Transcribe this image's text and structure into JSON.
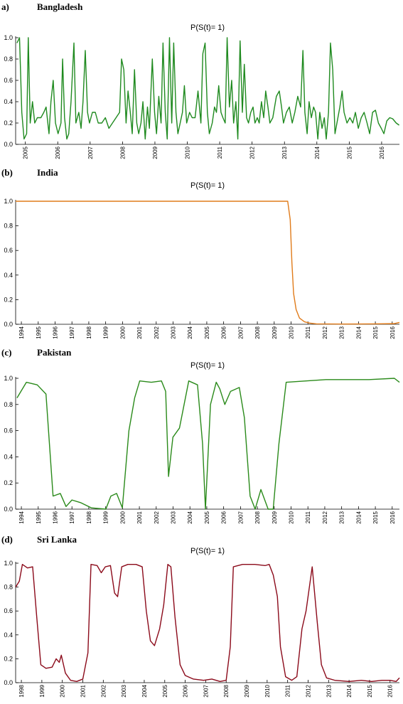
{
  "chart_data": [
    {
      "type": "line",
      "panel": "a)",
      "title": "Bangladesh",
      "subtitle": "P(S(t)= 1)",
      "color": "#1f8a1f",
      "xlim": [
        2004.7,
        2016.55
      ],
      "xticks": [
        2005,
        2006,
        2007,
        2008,
        2009,
        2010,
        2011,
        2012,
        2013,
        2014,
        2015,
        2016
      ],
      "ylim": [
        0,
        1
      ],
      "yticks": [
        {
          "value": 0,
          "label": "0.0"
        },
        0.2,
        0.4,
        0.6,
        0.8,
        {
          "value": 1,
          "label": "1.0"
        }
      ],
      "x": [
        2004.74,
        2004.82,
        2004.89,
        2004.96,
        2005.04,
        2005.09,
        2005.15,
        2005.22,
        2005.29,
        2005.37,
        2005.48,
        2005.57,
        2005.64,
        2005.73,
        2005.79,
        2005.86,
        2005.93,
        2006.01,
        2006.1,
        2006.15,
        2006.21,
        2006.28,
        2006.34,
        2006.41,
        2006.5,
        2006.56,
        2006.65,
        2006.72,
        2006.78,
        2006.85,
        2006.92,
        2006.98,
        2007.07,
        2007.16,
        2007.25,
        2007.36,
        2007.47,
        2007.58,
        2007.69,
        2007.8,
        2007.91,
        2007.97,
        2008.04,
        2008.11,
        2008.17,
        2008.24,
        2008.3,
        2008.37,
        2008.44,
        2008.5,
        2008.57,
        2008.63,
        2008.7,
        2008.77,
        2008.83,
        2008.92,
        2008.99,
        2009.05,
        2009.12,
        2009.19,
        2009.25,
        2009.32,
        2009.38,
        2009.45,
        2009.52,
        2009.58,
        2009.65,
        2009.71,
        2009.78,
        2009.85,
        2009.91,
        2009.98,
        2010.07,
        2010.15,
        2010.24,
        2010.33,
        2010.42,
        2010.48,
        2010.55,
        2010.62,
        2010.68,
        2010.77,
        2010.84,
        2010.9,
        2010.97,
        2011.04,
        2011.1,
        2011.17,
        2011.23,
        2011.3,
        2011.37,
        2011.43,
        2011.5,
        2011.56,
        2011.63,
        2011.7,
        2011.76,
        2011.83,
        2011.89,
        2011.96,
        2012.03,
        2012.09,
        2012.16,
        2012.22,
        2012.29,
        2012.36,
        2012.42,
        2012.49,
        2012.55,
        2012.64,
        2012.75,
        2012.84,
        2012.91,
        2012.97,
        2013.06,
        2013.15,
        2013.24,
        2013.32,
        2013.41,
        2013.5,
        2013.57,
        2013.63,
        2013.7,
        2013.76,
        2013.83,
        2013.9,
        2013.96,
        2014.03,
        2014.09,
        2014.16,
        2014.23,
        2014.29,
        2014.36,
        2014.42,
        2014.49,
        2014.56,
        2014.62,
        2014.71,
        2014.78,
        2014.84,
        2014.93,
        2015.02,
        2015.11,
        2015.19,
        2015.28,
        2015.37,
        2015.46,
        2015.55,
        2015.63,
        2015.72,
        2015.81,
        2015.9,
        2015.99,
        2016.07,
        2016.16,
        2016.25,
        2016.34,
        2016.45,
        2016.54
      ],
      "values": [
        0.95,
        1.0,
        0.3,
        0.05,
        0.1,
        1.0,
        0.2,
        0.4,
        0.2,
        0.25,
        0.25,
        0.3,
        0.35,
        0.1,
        0.4,
        0.6,
        0.2,
        0.1,
        0.2,
        0.8,
        0.25,
        0.05,
        0.1,
        0.4,
        0.95,
        0.2,
        0.3,
        0.15,
        0.4,
        0.88,
        0.3,
        0.2,
        0.3,
        0.3,
        0.2,
        0.2,
        0.25,
        0.15,
        0.2,
        0.25,
        0.3,
        0.8,
        0.7,
        0.2,
        0.5,
        0.3,
        0.1,
        0.7,
        0.2,
        0.1,
        0.2,
        0.4,
        0.05,
        0.35,
        0.15,
        0.8,
        0.3,
        0.1,
        0.45,
        0.2,
        0.95,
        0.3,
        0.05,
        1.0,
        0.2,
        0.95,
        0.3,
        0.1,
        0.2,
        0.3,
        0.55,
        0.2,
        0.3,
        0.25,
        0.25,
        0.5,
        0.2,
        0.85,
        0.95,
        0.3,
        0.1,
        0.2,
        0.35,
        0.3,
        0.55,
        0.3,
        0.25,
        0.2,
        1.0,
        0.35,
        0.6,
        0.2,
        0.4,
        0.05,
        0.97,
        0.3,
        0.75,
        0.25,
        0.2,
        0.3,
        0.35,
        0.2,
        0.25,
        0.2,
        0.4,
        0.25,
        0.5,
        0.35,
        0.2,
        0.25,
        0.45,
        0.5,
        0.35,
        0.2,
        0.3,
        0.35,
        0.2,
        0.3,
        0.45,
        0.35,
        0.88,
        0.3,
        0.1,
        0.4,
        0.25,
        0.35,
        0.3,
        0.05,
        0.3,
        0.15,
        0.25,
        0.05,
        0.3,
        0.95,
        0.7,
        0.1,
        0.2,
        0.35,
        0.5,
        0.3,
        0.2,
        0.25,
        0.2,
        0.3,
        0.15,
        0.25,
        0.3,
        0.2,
        0.1,
        0.3,
        0.32,
        0.2,
        0.15,
        0.1,
        0.22,
        0.25,
        0.24,
        0.2,
        0.18
      ]
    },
    {
      "type": "line",
      "panel": "(b)",
      "title": "India",
      "subtitle": "P(S(t)= 1)",
      "color": "#e07b1a",
      "xlim": [
        1993.66,
        2016.43
      ],
      "xticks": [
        1994,
        1995,
        1996,
        1997,
        1998,
        1999,
        2000,
        2001,
        2002,
        2003,
        2004,
        2005,
        2006,
        2007,
        2008,
        2009,
        2010,
        2011,
        2012,
        2013,
        2014,
        2015,
        2016
      ],
      "ylim": [
        0,
        1
      ],
      "yticks": [
        {
          "value": 0,
          "label": "0.0"
        },
        0.2,
        0.4,
        0.6,
        0.8,
        {
          "value": 1,
          "label": "1.0"
        }
      ],
      "x": [
        1993.66,
        2009.8,
        2009.95,
        2010.05,
        2010.15,
        2010.3,
        2010.5,
        2010.8,
        2011.1,
        2011.5,
        2013,
        2015,
        2016.1,
        2016.43
      ],
      "values": [
        1,
        1,
        0.85,
        0.5,
        0.25,
        0.12,
        0.05,
        0.02,
        0.01,
        0.003,
        0.002,
        0.003,
        0.005,
        0.015
      ]
    },
    {
      "type": "line",
      "panel": "(c)",
      "title": "Pakistan",
      "subtitle": "P(S(t)= 1)",
      "color": "#2a8a1a",
      "xlim": [
        1993.66,
        2016.43
      ],
      "xticks": [
        1994,
        1995,
        1996,
        1997,
        1998,
        1999,
        2000,
        2001,
        2002,
        2003,
        2004,
        2005,
        2006,
        2007,
        2008,
        2009,
        2010,
        2011,
        2012,
        2013,
        2014,
        2015,
        2016
      ],
      "ylim": [
        0,
        1
      ],
      "yticks": [
        {
          "value": 0,
          "label": "0.0"
        },
        0.2,
        0.4,
        0.6,
        0.8,
        {
          "value": 1,
          "label": "1.0"
        }
      ],
      "x": [
        1993.74,
        1994.3,
        1994.94,
        1995.46,
        1995.88,
        1996.31,
        1996.65,
        1997.0,
        1997.51,
        1998.15,
        1999.01,
        1999.31,
        1999.65,
        1999.99,
        2000.38,
        2000.72,
        2001.02,
        2001.71,
        2002.31,
        2002.56,
        2002.73,
        2002.99,
        2003.38,
        2003.93,
        2004.45,
        2004.75,
        2004.92,
        2005.22,
        2005.56,
        2005.77,
        2006.07,
        2006.41,
        2006.93,
        2007.23,
        2007.57,
        2007.87,
        2008.21,
        2008.64,
        2008.94,
        2009.28,
        2009.71,
        2012.07,
        2014.63,
        2016.13,
        2016.43
      ],
      "values": [
        0.85,
        0.97,
        0.95,
        0.88,
        0.1,
        0.12,
        0.02,
        0.07,
        0.05,
        0.01,
        0,
        0.1,
        0.12,
        0.01,
        0.6,
        0.85,
        0.98,
        0.97,
        0.98,
        0.9,
        0.25,
        0.55,
        0.62,
        0.98,
        0.95,
        0.5,
        0,
        0.8,
        0.97,
        0.92,
        0.8,
        0.9,
        0.93,
        0.7,
        0.1,
        0,
        0.15,
        0,
        0,
        0.5,
        0.97,
        0.99,
        0.99,
        1,
        0.97
      ]
    },
    {
      "type": "line",
      "panel": "(d)",
      "title": "Sri Lanka",
      "subtitle": "P(S(t)= 1)",
      "color": "#8b0a1a",
      "xlim": [
        1997.72,
        2016.46
      ],
      "xticks": [
        1998,
        1999,
        2000,
        2001,
        2002,
        2003,
        2004,
        2005,
        2006,
        2007,
        2008,
        2009,
        2010,
        2011,
        2012,
        2013,
        2014,
        2015,
        2016
      ],
      "ylim": [
        0,
        1
      ],
      "yticks": [
        {
          "value": 0,
          "label": "0.0"
        },
        0.2,
        0.4,
        0.6,
        0.8,
        {
          "value": 1,
          "label": "1.0"
        }
      ],
      "x": [
        1997.72,
        1997.9,
        1998.05,
        1998.3,
        1998.55,
        1998.75,
        1998.95,
        1999.2,
        1999.5,
        1999.7,
        1999.85,
        1999.95,
        2000.15,
        2000.4,
        2000.7,
        2001.0,
        2001.25,
        2001.4,
        2001.7,
        2001.9,
        2002.1,
        2002.35,
        2002.55,
        2002.7,
        2002.9,
        2003.2,
        2003.6,
        2003.9,
        2004.1,
        2004.3,
        2004.5,
        2004.75,
        2004.95,
        2005.15,
        2005.3,
        2005.5,
        2005.75,
        2006.0,
        2006.4,
        2006.9,
        2007.3,
        2007.7,
        2008.0,
        2008.2,
        2008.35,
        2008.8,
        2009.4,
        2009.9,
        2010.1,
        2010.3,
        2010.5,
        2010.65,
        2010.9,
        2011.2,
        2011.45,
        2011.7,
        2011.9,
        2012.2,
        2012.45,
        2012.65,
        2012.9,
        2013.3,
        2014,
        2014.6,
        2015.1,
        2015.6,
        2016.0,
        2016.3,
        2016.46
      ],
      "values": [
        0.8,
        0.85,
        0.99,
        0.96,
        0.97,
        0.55,
        0.15,
        0.12,
        0.13,
        0.2,
        0.17,
        0.23,
        0.08,
        0.02,
        0.01,
        0.03,
        0.25,
        0.99,
        0.98,
        0.92,
        0.97,
        0.98,
        0.75,
        0.72,
        0.97,
        0.99,
        0.99,
        0.97,
        0.6,
        0.35,
        0.31,
        0.45,
        0.65,
        0.99,
        0.97,
        0.55,
        0.15,
        0.06,
        0.03,
        0.02,
        0.03,
        0.01,
        0.02,
        0.3,
        0.97,
        0.99,
        0.99,
        0.98,
        0.99,
        0.9,
        0.72,
        0.3,
        0.05,
        0.02,
        0.05,
        0.45,
        0.6,
        0.97,
        0.5,
        0.15,
        0.04,
        0.02,
        0.01,
        0.02,
        0.01,
        0.02,
        0.02,
        0.01,
        0.04
      ]
    }
  ]
}
